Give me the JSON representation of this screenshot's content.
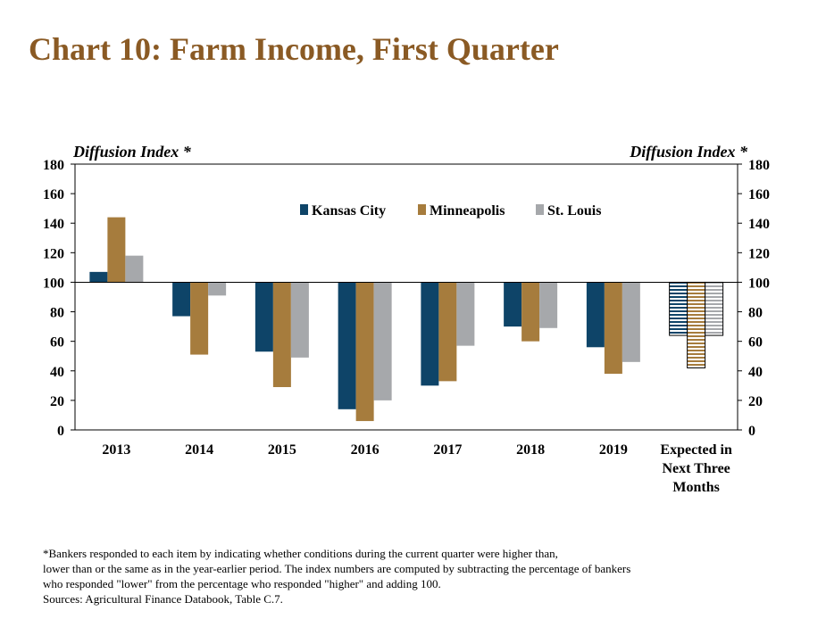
{
  "title": "Chart 10: Farm Income, First Quarter",
  "colors": {
    "title": "#8a5a24",
    "kansas_city": "#0e4468",
    "minneapolis": "#a67c3d",
    "st_louis": "#a6a8ab"
  },
  "chart_data": {
    "type": "bar",
    "title": "Chart 10: Farm Income, First Quarter",
    "ylabel_left": "Diffusion Index *",
    "ylabel_right": "Diffusion Index *",
    "ylim": [
      0,
      180
    ],
    "yticks": [
      0,
      20,
      40,
      60,
      80,
      100,
      120,
      140,
      160,
      180
    ],
    "baseline": 100,
    "categories": [
      "2013",
      "2014",
      "2015",
      "2016",
      "2017",
      "2018",
      "2019",
      "Expected in Next Three Months"
    ],
    "category_lines": [
      [
        "2013"
      ],
      [
        "2014"
      ],
      [
        "2015"
      ],
      [
        "2016"
      ],
      [
        "2017"
      ],
      [
        "2018"
      ],
      [
        "2019"
      ],
      [
        "Expected in",
        "Next Three",
        "Months"
      ]
    ],
    "legend_position": "top-center",
    "hatched_category": "Expected in Next Three Months",
    "series": [
      {
        "name": "Kansas City",
        "color": "#0e4468",
        "values": [
          107,
          77,
          53,
          14,
          30,
          70,
          56,
          64
        ]
      },
      {
        "name": "Minneapolis",
        "color": "#a67c3d",
        "values": [
          144,
          51,
          29,
          6,
          33,
          60,
          38,
          42
        ]
      },
      {
        "name": "St. Louis",
        "color": "#a6a8ab",
        "values": [
          118,
          91,
          49,
          20,
          57,
          69,
          46,
          64
        ]
      }
    ]
  },
  "footnote": [
    "*Bankers responded to each item by indicating whether conditions during the current quarter were higher than,",
    "lower than or the same as in the year-earlier period.  The index numbers are computed by subtracting the percentage of bankers",
    "who responded \"lower\" from the percentage who responded \"higher\" and adding 100.",
    "Sources: Agricultural Finance Databook, Table C.7."
  ]
}
